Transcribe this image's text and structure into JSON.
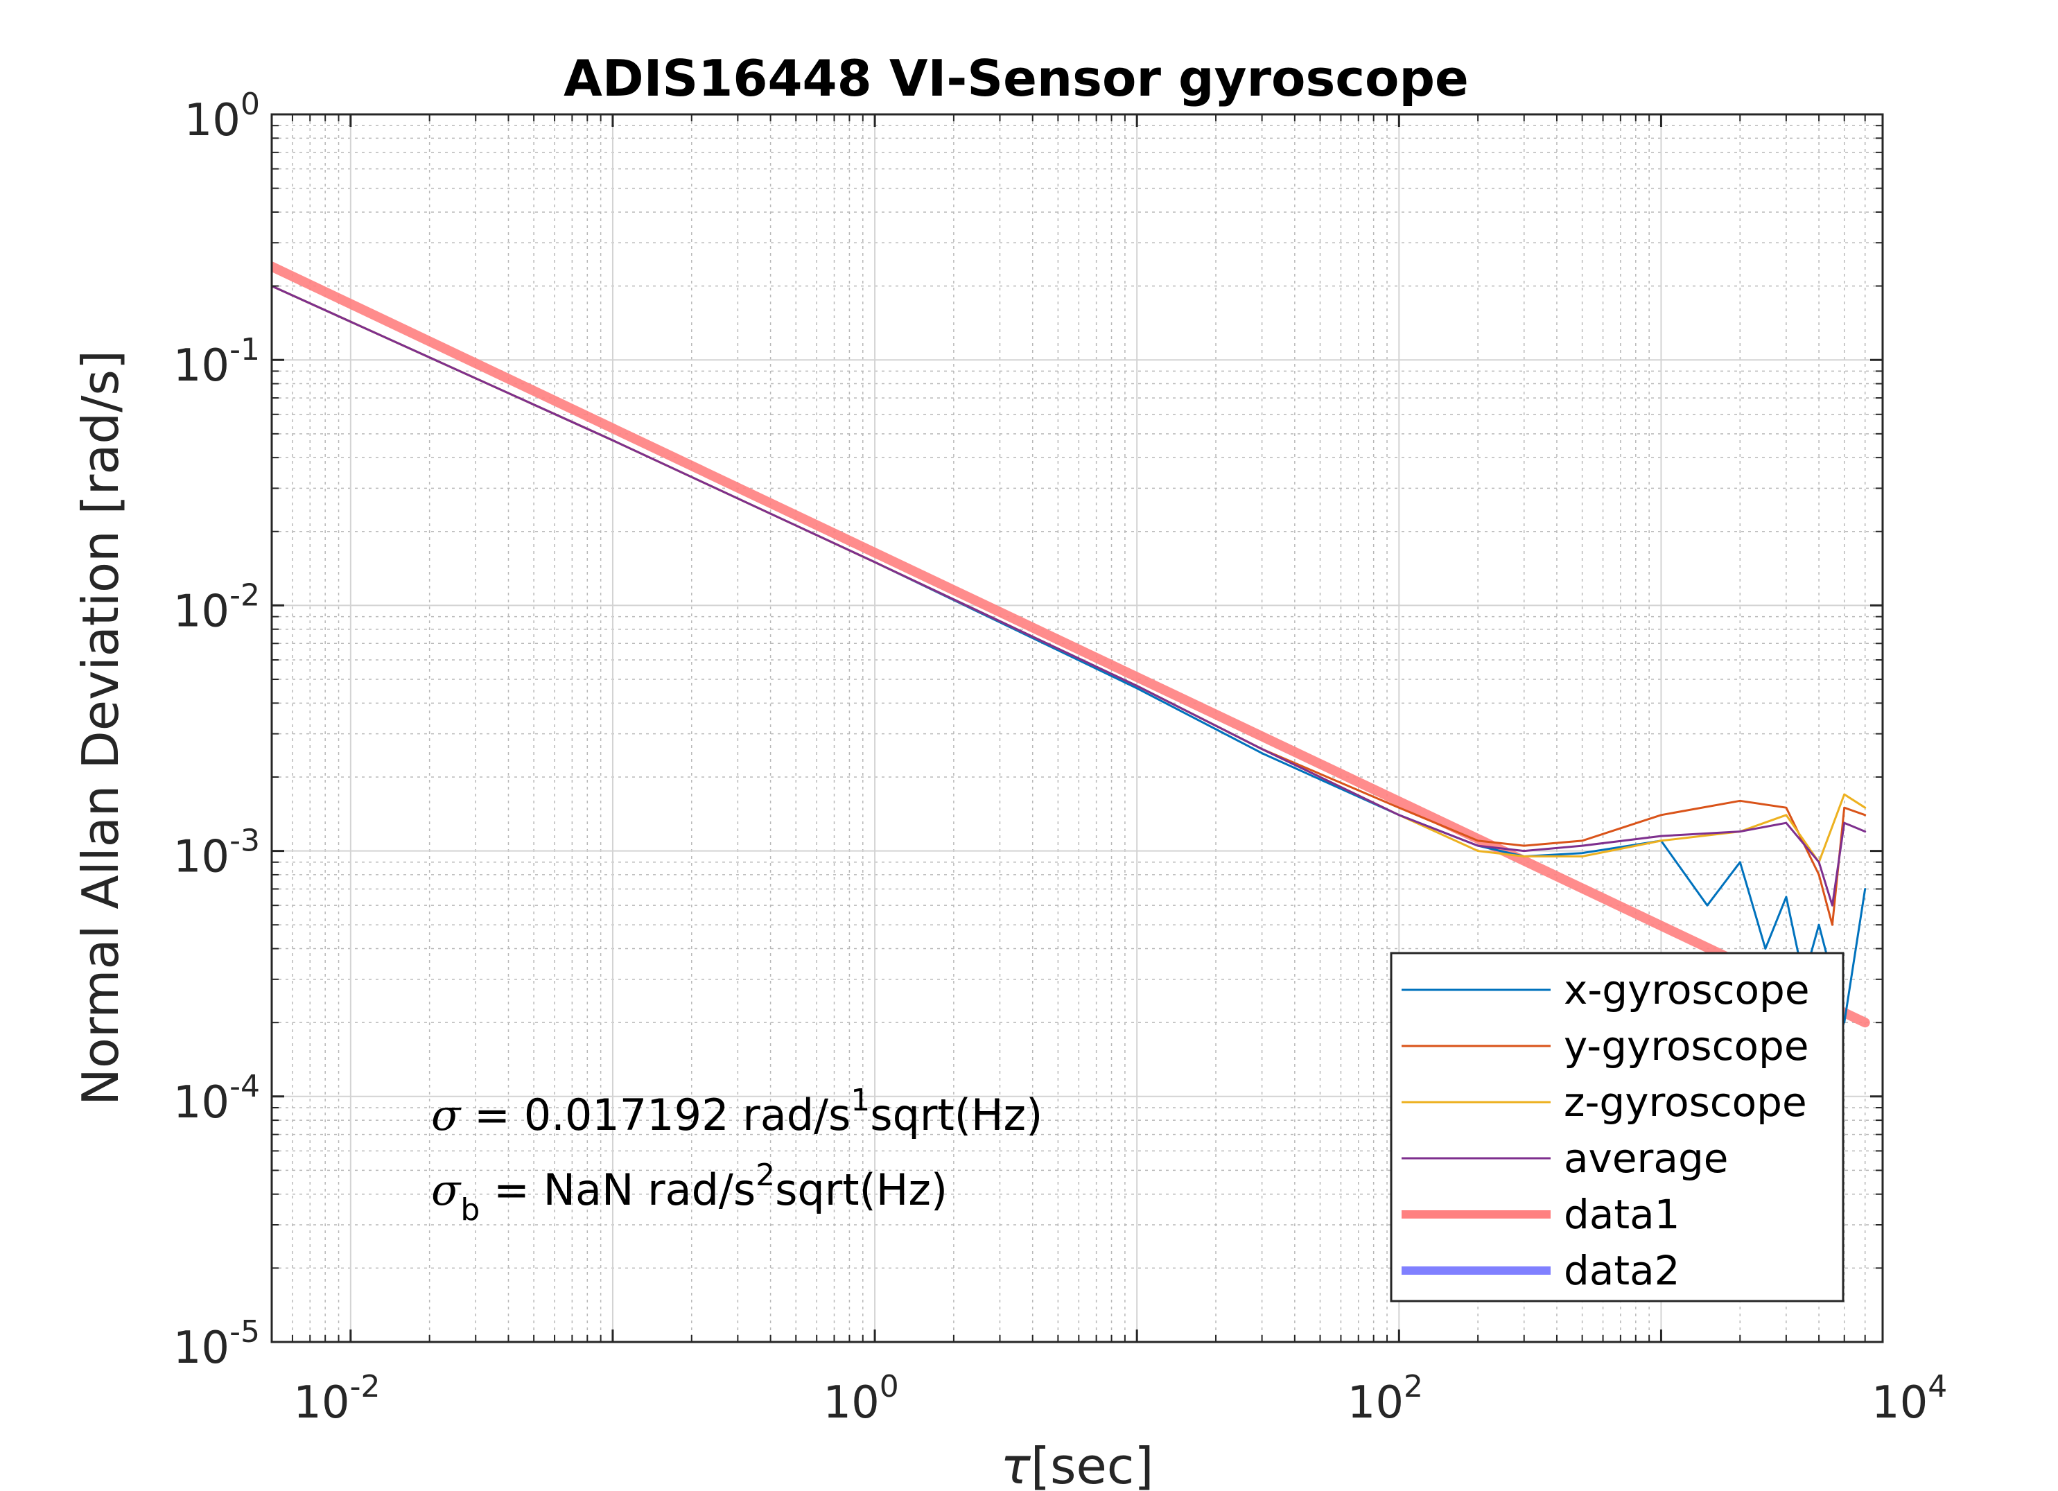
{
  "chart_data": {
    "type": "line",
    "title": "ADIS16448 VI-Sensor gyroscope",
    "xlabel": "τ [sec]",
    "xlabel_symbol": "τ",
    "xlabel_unit": "[sec]",
    "ylabel": "Normal Allan Deviation [rad/s]",
    "xscale": "log",
    "yscale": "log",
    "xlim": [
      0.005,
      7000
    ],
    "ylim": [
      1e-05,
      1
    ],
    "grid": true,
    "minor_grid": true,
    "legend_position": "bottom-right",
    "x_ticks": [
      {
        "base": "10",
        "exp": "-2"
      },
      {
        "base": "10",
        "exp": "0"
      },
      {
        "base": "10",
        "exp": "2"
      },
      {
        "base": "10",
        "exp": "4"
      }
    ],
    "y_ticks": [
      {
        "base": "10",
        "exp": "-5"
      },
      {
        "base": "10",
        "exp": "-4"
      },
      {
        "base": "10",
        "exp": "-3"
      },
      {
        "base": "10",
        "exp": "-2"
      },
      {
        "base": "10",
        "exp": "-1"
      },
      {
        "base": "10",
        "exp": "0"
      }
    ],
    "annotations": {
      "sigma_symbol": "σ",
      "sigma_text": " = 0.017192 rad/s",
      "sigma_sup": "1",
      "sigma_tail": "sqrt(Hz)",
      "sigmab_symbol": "σ",
      "sigmab_sub": "b",
      "sigmab_text": " = NaN rad/s",
      "sigmab_sup": "2",
      "sigmab_tail": "sqrt(Hz)"
    },
    "series": [
      {
        "name": "x-gyroscope",
        "color": "#0072BD",
        "points": [
          [
            0.005,
            0.2
          ],
          [
            0.1,
            0.047
          ],
          [
            1,
            0.015
          ],
          [
            10,
            0.0046
          ],
          [
            30,
            0.0025
          ],
          [
            100,
            0.0014
          ],
          [
            200,
            0.00105
          ],
          [
            300,
            0.00095
          ],
          [
            500,
            0.00098
          ],
          [
            1000,
            0.0011
          ],
          [
            1500,
            0.0006
          ],
          [
            2000,
            0.0009
          ],
          [
            2500,
            0.0004
          ],
          [
            3000,
            0.00065
          ],
          [
            3500,
            0.0003
          ],
          [
            4000,
            0.0005
          ],
          [
            5000,
            0.0002
          ],
          [
            6000,
            0.0007
          ]
        ]
      },
      {
        "name": "y-gyroscope",
        "color": "#D95319",
        "points": [
          [
            0.005,
            0.2
          ],
          [
            0.1,
            0.047
          ],
          [
            1,
            0.015
          ],
          [
            10,
            0.0047
          ],
          [
            30,
            0.0026
          ],
          [
            100,
            0.0015
          ],
          [
            200,
            0.0011
          ],
          [
            300,
            0.00105
          ],
          [
            500,
            0.0011
          ],
          [
            1000,
            0.0014
          ],
          [
            2000,
            0.0016
          ],
          [
            3000,
            0.0015
          ],
          [
            4000,
            0.0008
          ],
          [
            4500,
            0.0005
          ],
          [
            5000,
            0.0015
          ],
          [
            6000,
            0.0014
          ]
        ]
      },
      {
        "name": "z-gyroscope",
        "color": "#EDB120",
        "points": [
          [
            0.005,
            0.2
          ],
          [
            0.1,
            0.047
          ],
          [
            1,
            0.015
          ],
          [
            10,
            0.0047
          ],
          [
            30,
            0.0026
          ],
          [
            100,
            0.0014
          ],
          [
            200,
            0.001
          ],
          [
            300,
            0.00095
          ],
          [
            500,
            0.00095
          ],
          [
            1000,
            0.0011
          ],
          [
            2000,
            0.0012
          ],
          [
            3000,
            0.0014
          ],
          [
            4000,
            0.0009
          ],
          [
            5000,
            0.0017
          ],
          [
            6000,
            0.0015
          ]
        ]
      },
      {
        "name": "average",
        "color": "#7E2F8E",
        "points": [
          [
            0.005,
            0.2
          ],
          [
            0.1,
            0.047
          ],
          [
            1,
            0.015
          ],
          [
            10,
            0.0047
          ],
          [
            30,
            0.0026
          ],
          [
            100,
            0.0014
          ],
          [
            200,
            0.00105
          ],
          [
            300,
            0.001
          ],
          [
            500,
            0.00105
          ],
          [
            1000,
            0.00115
          ],
          [
            2000,
            0.0012
          ],
          [
            3000,
            0.0013
          ],
          [
            4000,
            0.0009
          ],
          [
            4500,
            0.0006
          ],
          [
            5000,
            0.0013
          ],
          [
            6000,
            0.0012
          ]
        ]
      },
      {
        "name": "data1",
        "color": "#FF8080",
        "points": [
          [
            0.005,
            0.24
          ],
          [
            6000,
            0.0002
          ]
        ]
      },
      {
        "name": "data2",
        "color": "#8080FF",
        "points": []
      }
    ]
  }
}
